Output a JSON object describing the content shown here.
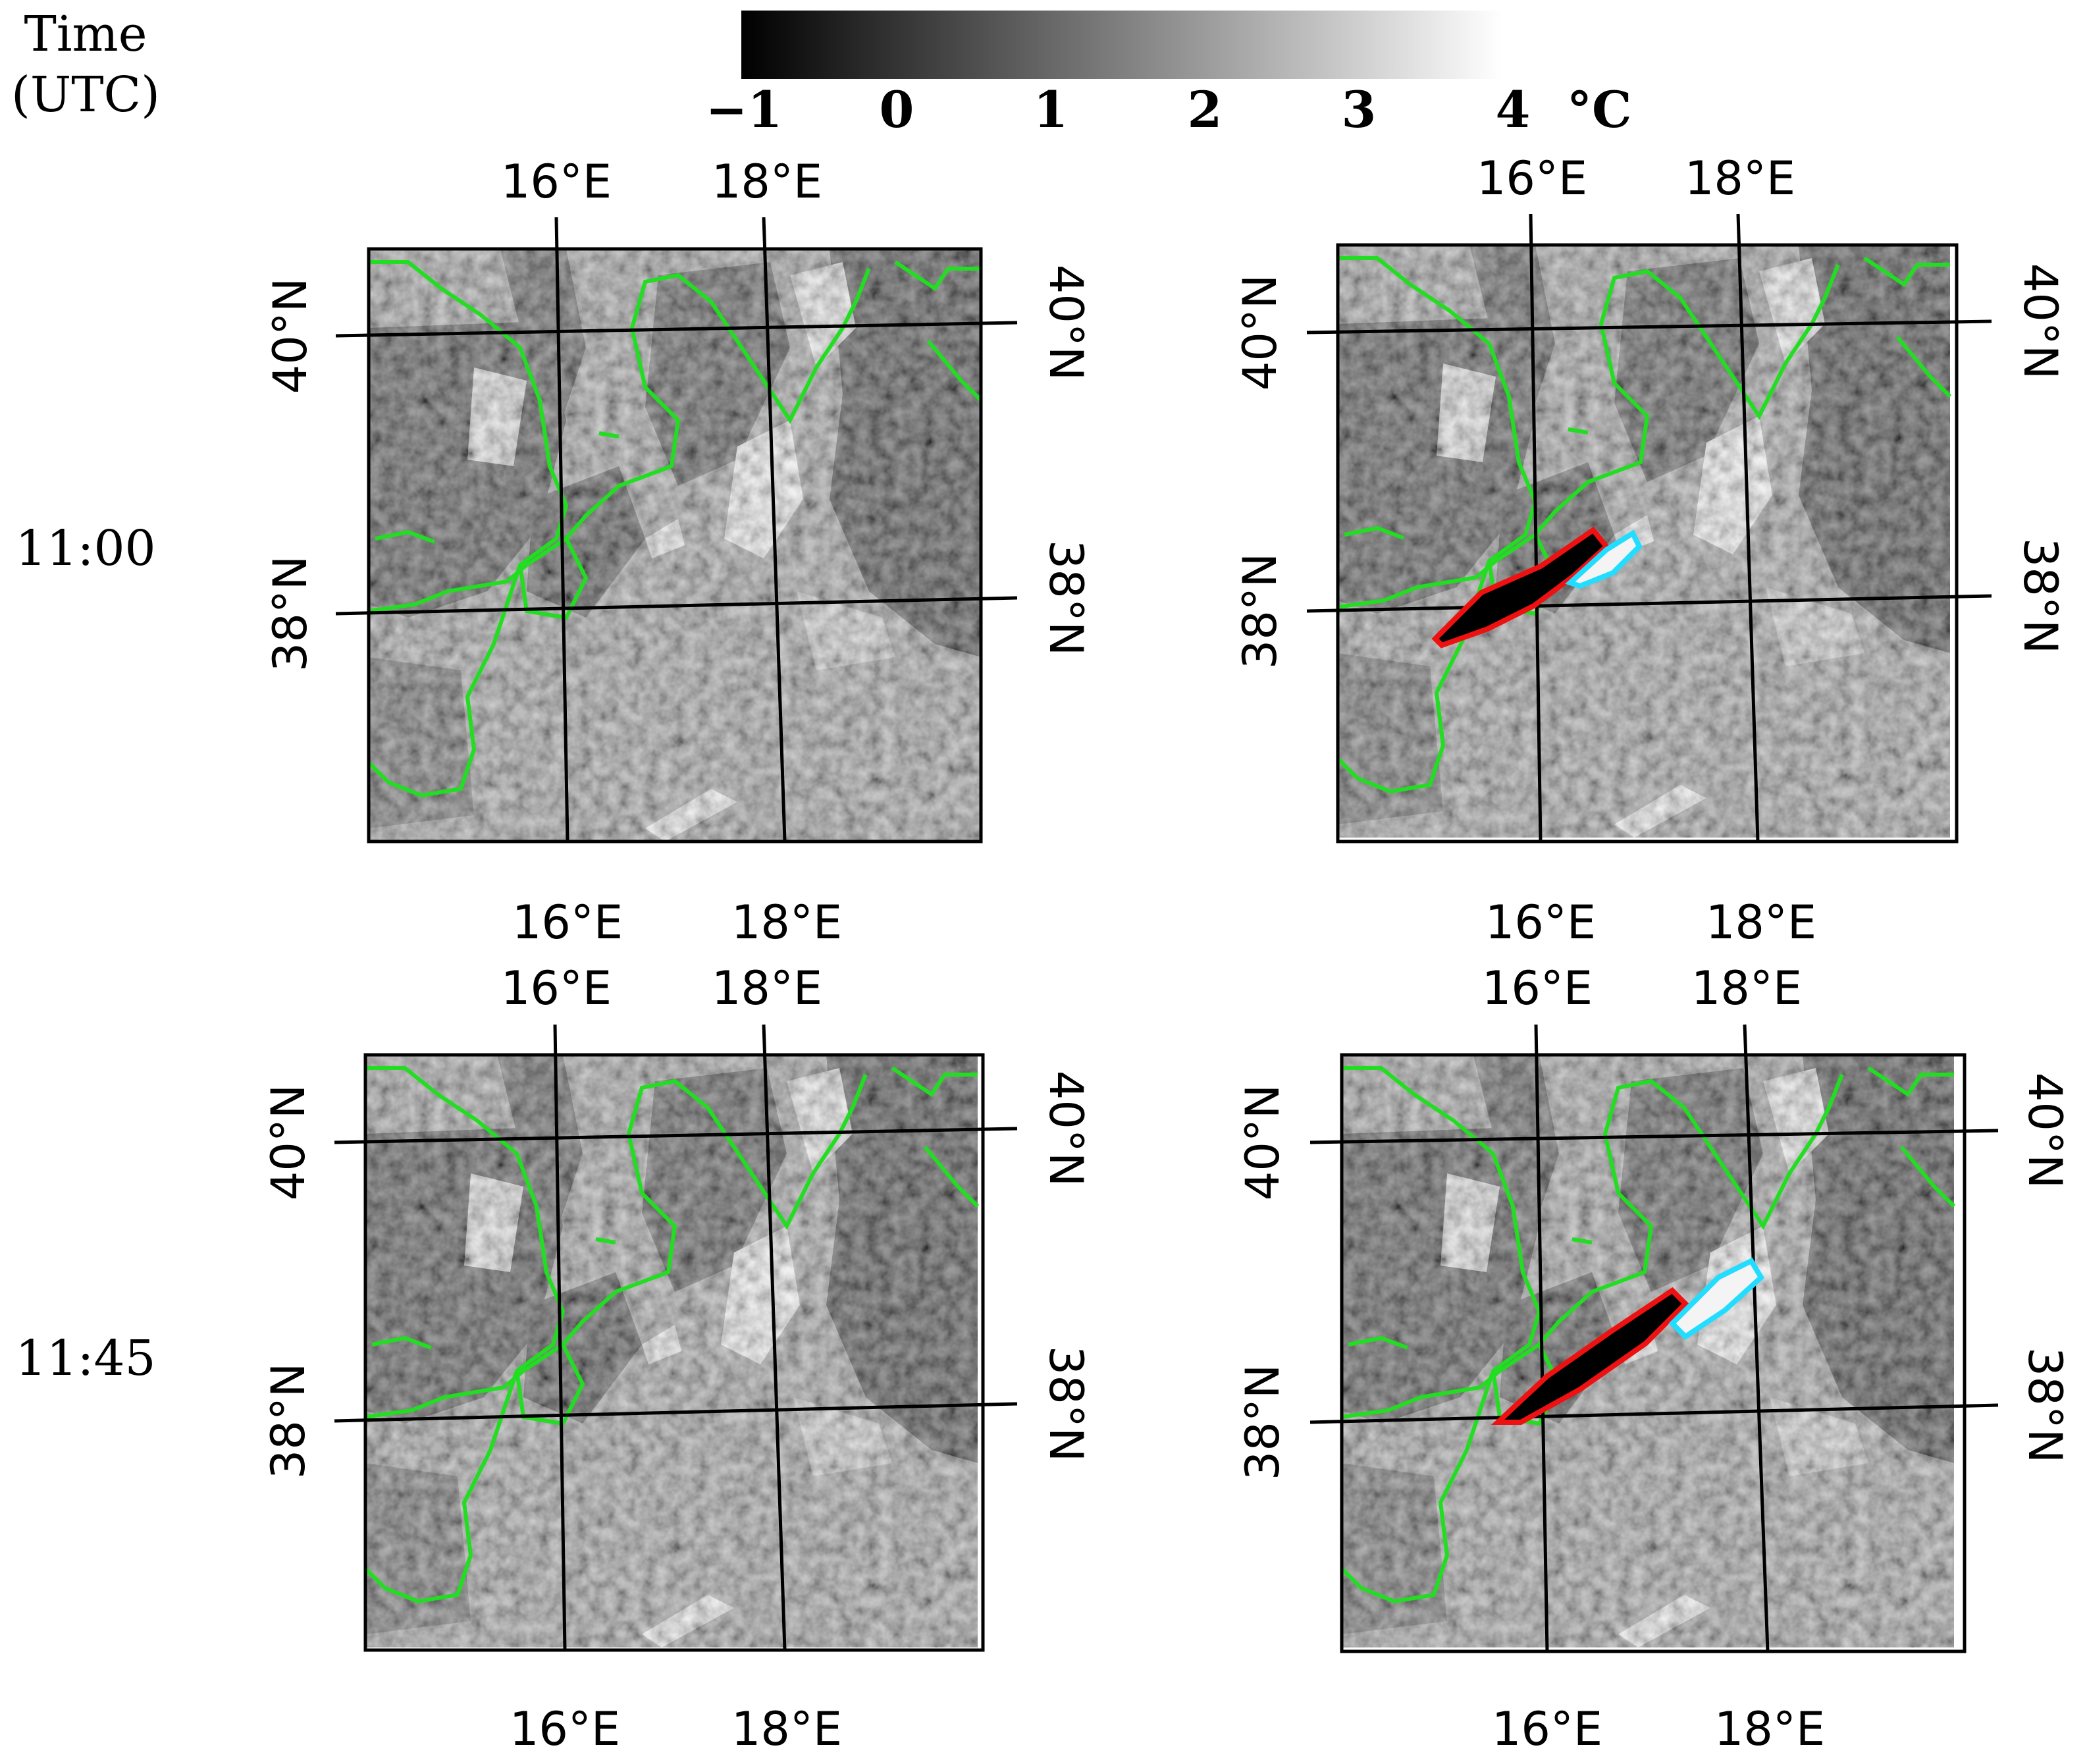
{
  "time_header": [
    "Time",
    "(UTC)"
  ],
  "colorbar": {
    "labels": [
      "−1",
      "0",
      "1",
      "2",
      "3",
      "4"
    ],
    "unit": "°C",
    "from_color": "#000000",
    "to_color": "#ffffff"
  },
  "rows": [
    {
      "time": "11:00"
    },
    {
      "time": "11:45"
    }
  ],
  "axis_labels": {
    "lon": [
      "16°E",
      "18°E"
    ],
    "lat": [
      "40°N",
      "38°N"
    ]
  },
  "colors": {
    "coastline": "#22dd22",
    "red_contour": "#ee1111",
    "cyan_contour": "#22ddff",
    "grid": "#000000"
  }
}
